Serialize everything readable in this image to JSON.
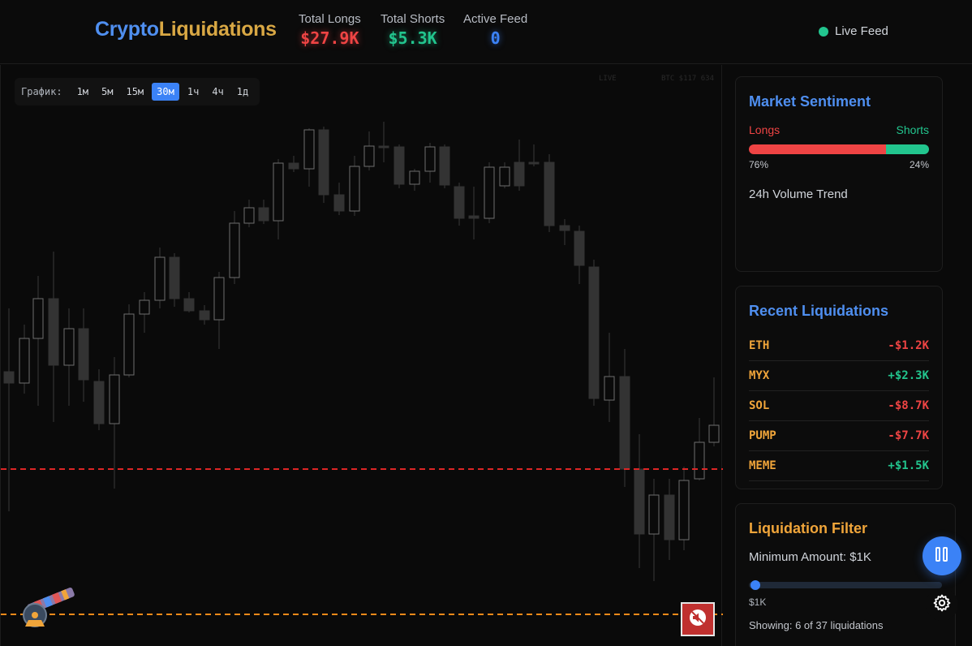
{
  "header": {
    "logo_part1": "Crypto",
    "logo_part2": "Liquidations",
    "stats": [
      {
        "label": "Total Longs",
        "value": "$27.9K"
      },
      {
        "label": "Total Shorts",
        "value": "$5.3K"
      },
      {
        "label": "Active Feed",
        "value": "0"
      }
    ],
    "live_label": "Live Feed"
  },
  "chart": {
    "timeframe_label": "График:",
    "timeframes": [
      "1м",
      "5м",
      "15м",
      "30м",
      "1ч",
      "4ч",
      "1д"
    ],
    "active_timeframe": "30м",
    "watermark_left": "LIVE",
    "watermark_right": "BTC $117 634"
  },
  "sentiment": {
    "title": "Market Sentiment",
    "longs_label": "Longs",
    "shorts_label": "Shorts",
    "longs_pct_text": "76%",
    "shorts_pct_text": "24%",
    "longs_fraction": 0.76,
    "volume_trend_label": "24h Volume Trend"
  },
  "recent": {
    "title": "Recent Liquidations",
    "rows": [
      {
        "symbol": "ETH",
        "amount": "-$1.2K"
      },
      {
        "symbol": "MYX",
        "amount": "+$2.3K"
      },
      {
        "symbol": "SOL",
        "amount": "-$8.7K"
      },
      {
        "symbol": "PUMP",
        "amount": "-$7.7K"
      },
      {
        "symbol": "MEME",
        "amount": "+$1.5K"
      }
    ]
  },
  "filter": {
    "title": "Liquidation Filter",
    "min_amount_label": "Minimum Amount: $1K",
    "range_min": "$1K",
    "range_max": "$",
    "slider_fraction": 0.0,
    "showing_text": "Showing: 6 of 37 liquidations"
  },
  "colors": {
    "accent_blue": "#3b82f6",
    "long_red": "#ef4444",
    "short_green": "#22c58e",
    "orange": "#f0a53a"
  }
}
